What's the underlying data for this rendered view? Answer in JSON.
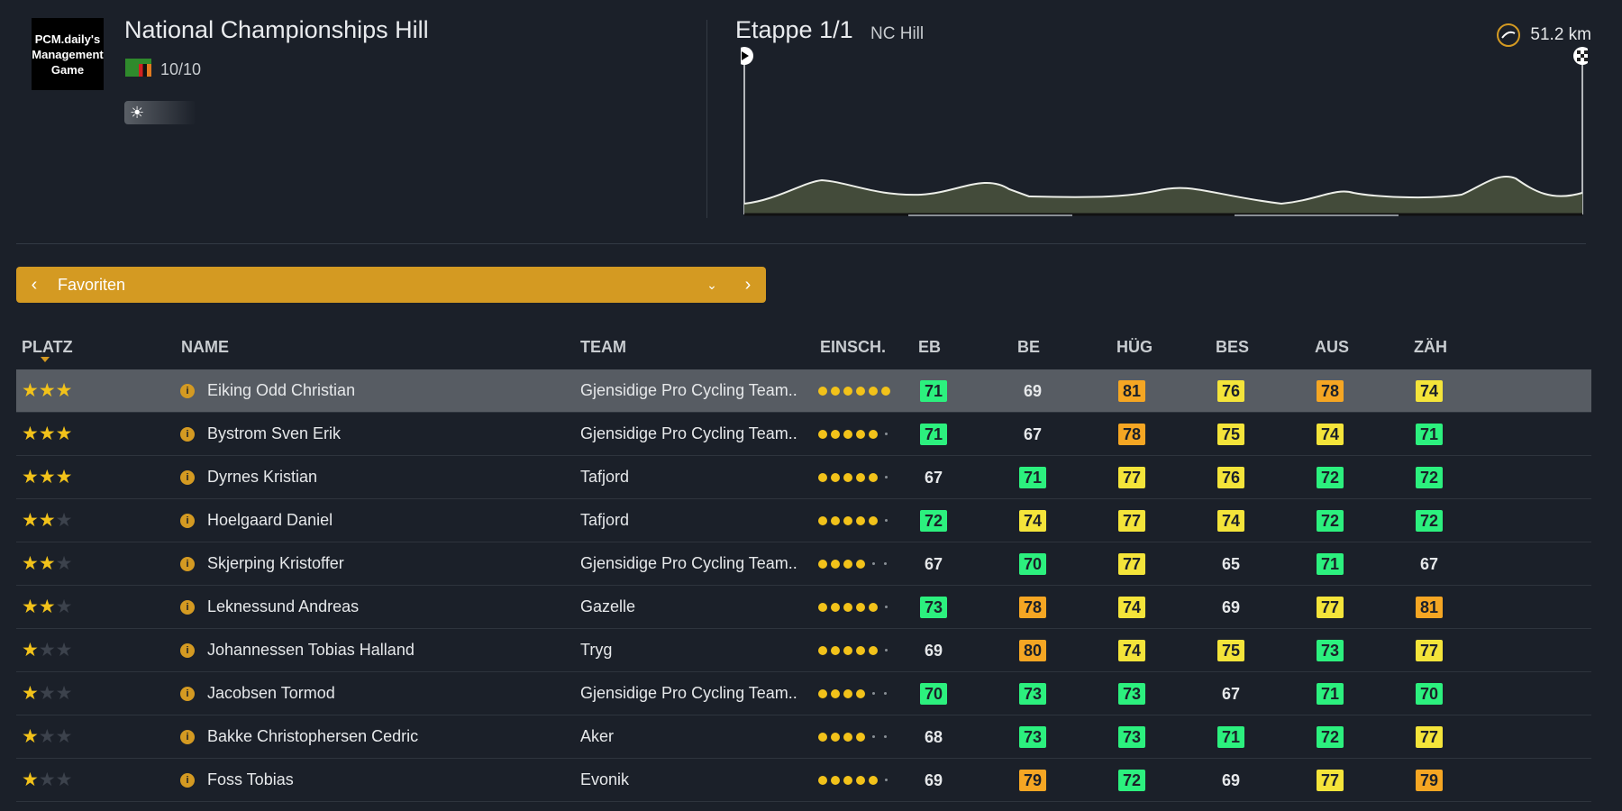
{
  "race": {
    "logo_text": "PCM.daily's Management Game",
    "title": "National Championships Hill",
    "rating": "10/10",
    "flag_icon": "zambia-flag-icon"
  },
  "stage": {
    "title": "Etappe 1/1",
    "subtitle": "NC Hill",
    "distance": "51.2 km"
  },
  "filter": {
    "label": "Favoriten"
  },
  "columns": {
    "platz": "PLATZ",
    "name": "NAME",
    "team": "TEAM",
    "einsch": "EINSCH.",
    "eb": "EB",
    "be": "BE",
    "hug": "HÜG",
    "bes": "BES",
    "aus": "AUS",
    "zah": "ZÄH"
  },
  "colors": {
    "accent": "#d49a22",
    "green": "#2cf07e",
    "yellow": "#f4e43a",
    "orange": "#f5a623"
  },
  "riders": [
    {
      "stars": 3,
      "name": "Eiking Odd Christian",
      "team": "Gjensidige Pro Cycling Team..",
      "form": 6,
      "eb": "71",
      "be": "69",
      "hug": "81",
      "bes": "76",
      "aus": "78",
      "zah": "74"
    },
    {
      "stars": 3,
      "name": "Bystrom Sven Erik",
      "team": "Gjensidige Pro Cycling Team..",
      "form": 5,
      "eb": "71",
      "be": "67",
      "hug": "78",
      "bes": "75",
      "aus": "74",
      "zah": "71"
    },
    {
      "stars": 3,
      "name": "Dyrnes Kristian",
      "team": "Tafjord",
      "form": 5,
      "eb": "67",
      "be": "71",
      "hug": "77",
      "bes": "76",
      "aus": "72",
      "zah": "72"
    },
    {
      "stars": 2,
      "name": "Hoelgaard Daniel",
      "team": "Tafjord",
      "form": 5,
      "eb": "72",
      "be": "74",
      "hug": "77",
      "bes": "74",
      "aus": "72",
      "zah": "72"
    },
    {
      "stars": 2,
      "name": "Skjerping Kristoffer",
      "team": "Gjensidige Pro Cycling Team..",
      "form": 4,
      "eb": "67",
      "be": "70",
      "hug": "77",
      "bes": "65",
      "aus": "71",
      "zah": "67"
    },
    {
      "stars": 2,
      "name": "Leknessund Andreas",
      "team": "Gazelle",
      "form": 5,
      "eb": "73",
      "be": "78",
      "hug": "74",
      "bes": "69",
      "aus": "77",
      "zah": "81"
    },
    {
      "stars": 1,
      "name": "Johannessen Tobias Halland",
      "team": "Tryg",
      "form": 5,
      "eb": "69",
      "be": "80",
      "hug": "74",
      "bes": "75",
      "aus": "73",
      "zah": "77"
    },
    {
      "stars": 1,
      "name": "Jacobsen Tormod",
      "team": "Gjensidige Pro Cycling Team..",
      "form": 4,
      "eb": "70",
      "be": "73",
      "hug": "73",
      "bes": "67",
      "aus": "71",
      "zah": "70"
    },
    {
      "stars": 1,
      "name": "Bakke Christophersen Cedric",
      "team": "Aker",
      "form": 4,
      "eb": "68",
      "be": "73",
      "hug": "73",
      "bes": "71",
      "aus": "72",
      "zah": "77"
    },
    {
      "stars": 1,
      "name": "Foss Tobias",
      "team": "Evonik",
      "form": 5,
      "eb": "69",
      "be": "79",
      "hug": "72",
      "bes": "69",
      "aus": "77",
      "zah": "79"
    }
  ],
  "stat_colors": [
    {
      "eb": "g",
      "be": "n",
      "hug": "o",
      "bes": "y",
      "aus": "o",
      "zah": "y"
    },
    {
      "eb": "g",
      "be": "n",
      "hug": "o",
      "bes": "y",
      "aus": "y",
      "zah": "g"
    },
    {
      "eb": "n",
      "be": "g",
      "hug": "y",
      "bes": "y",
      "aus": "g",
      "zah": "g"
    },
    {
      "eb": "g",
      "be": "y",
      "hug": "y",
      "bes": "y",
      "aus": "g",
      "zah": "g"
    },
    {
      "eb": "n",
      "be": "g",
      "hug": "y",
      "bes": "n",
      "aus": "g",
      "zah": "n"
    },
    {
      "eb": "g",
      "be": "o",
      "hug": "y",
      "bes": "n",
      "aus": "y",
      "zah": "o"
    },
    {
      "eb": "n",
      "be": "o",
      "hug": "y",
      "bes": "y",
      "aus": "g",
      "zah": "y"
    },
    {
      "eb": "g",
      "be": "g",
      "hug": "g",
      "bes": "n",
      "aus": "g",
      "zah": "g"
    },
    {
      "eb": "n",
      "be": "g",
      "hug": "g",
      "bes": "g",
      "aus": "g",
      "zah": "y"
    },
    {
      "eb": "n",
      "be": "o",
      "hug": "g",
      "bes": "n",
      "aus": "y",
      "zah": "o"
    }
  ]
}
